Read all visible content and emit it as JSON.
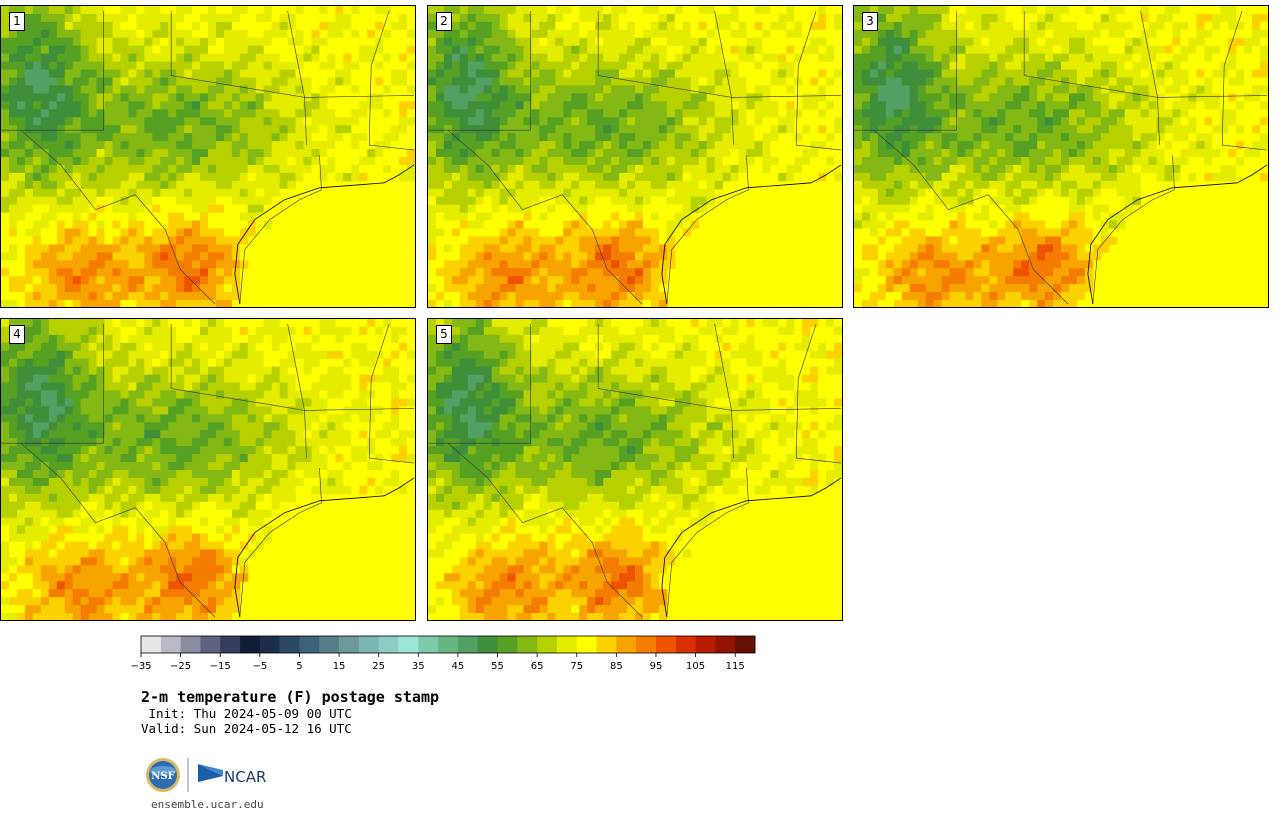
{
  "panels": [
    {
      "label": "1"
    },
    {
      "label": "2"
    },
    {
      "label": "3"
    },
    {
      "label": "4"
    },
    {
      "label": "5"
    }
  ],
  "chart_data": {
    "type": "heatmap",
    "title": "2-m temperature (F) postage stamp",
    "colorbar": {
      "levels": [
        -35,
        -30,
        -25,
        -20,
        -15,
        -10,
        -5,
        0,
        5,
        10,
        15,
        20,
        25,
        30,
        35,
        40,
        45,
        50,
        55,
        60,
        65,
        70,
        75,
        80,
        85,
        90,
        95,
        100,
        105,
        110,
        115,
        120
      ],
      "tick_labels": [
        "−35",
        "−25",
        "−15",
        "−5",
        "5",
        "15",
        "25",
        "35",
        "45",
        "55",
        "65",
        "75",
        "85",
        "95",
        "105",
        "115"
      ],
      "tick_values": [
        -35,
        -25,
        -15,
        -5,
        5,
        15,
        25,
        35,
        45,
        55,
        65,
        75,
        85,
        95,
        105,
        115
      ],
      "colors": [
        "#e6e6ea",
        "#b8b8c6",
        "#8a8ca2",
        "#5e6280",
        "#353c5c",
        "#111c36",
        "#1c2e4c",
        "#2c4866",
        "#3e6278",
        "#567e8a",
        "#6c9a9c",
        "#7ab6b2",
        "#8ccec6",
        "#9ce6d8",
        "#7ccaa8",
        "#66b684",
        "#52a064",
        "#3e8e3a",
        "#56a024",
        "#84b814",
        "#b6d000",
        "#e4ec00",
        "#ffff00",
        "#fbd200",
        "#f8a400",
        "#f47c00",
        "#ee5400",
        "#d83000",
        "#b81c00",
        "#901400",
        "#641004"
      ]
    },
    "grid": false
  },
  "init_text": " Init: Thu 2024-05-09 00 UTC",
  "valid_text": "Valid: Sun 2024-05-12 16 UTC",
  "site": "ensemble.ucar.edu",
  "logos": {
    "nsf": "NSF",
    "ncar": "NCAR"
  }
}
